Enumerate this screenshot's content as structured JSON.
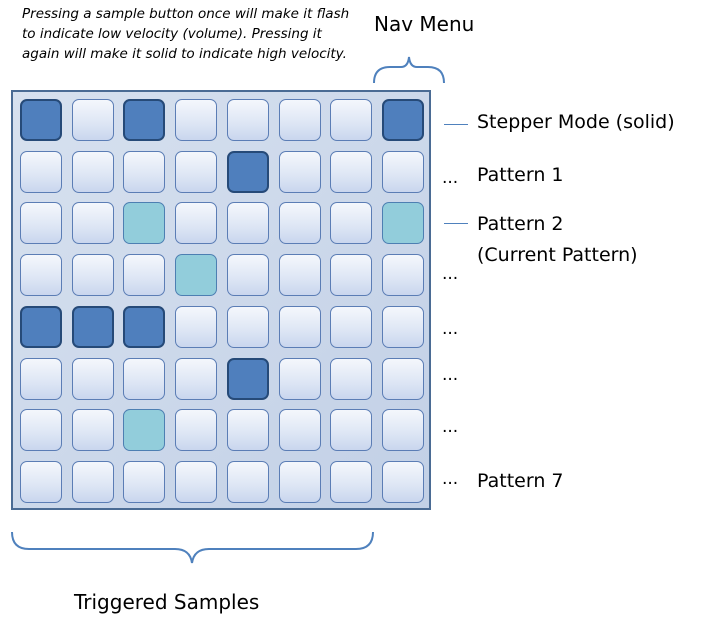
{
  "note": "Pressing a sample button once will make it flash to indicate low velocity (volume). Pressing it again will make it solid to indicate high velocity.",
  "nav_label": "Nav Menu",
  "bottom_label": "Triggered Samples",
  "row_labels": {
    "r0": "Stepper Mode (solid)",
    "r1": "Pattern 1",
    "r2a": "Pattern 2",
    "r2b": "(Current Pattern)",
    "r7": "Pattern 7"
  },
  "dots_text": "...",
  "grid": [
    [
      "solid",
      "off",
      "solid",
      "off",
      "off",
      "off",
      "off",
      "solid"
    ],
    [
      "off",
      "off",
      "off",
      "off",
      "solid",
      "off",
      "off",
      "off"
    ],
    [
      "off",
      "off",
      "flash",
      "off",
      "off",
      "off",
      "off",
      "flash"
    ],
    [
      "off",
      "off",
      "off",
      "flash",
      "off",
      "off",
      "off",
      "off"
    ],
    [
      "solid",
      "solid",
      "solid",
      "off",
      "off",
      "off",
      "off",
      "off"
    ],
    [
      "off",
      "off",
      "off",
      "off",
      "solid",
      "off",
      "off",
      "off"
    ],
    [
      "off",
      "off",
      "flash",
      "off",
      "off",
      "off",
      "off",
      "off"
    ],
    [
      "off",
      "off",
      "off",
      "off",
      "off",
      "off",
      "off",
      "off"
    ]
  ],
  "colors": {
    "solid": "#4f7fbd",
    "flash": "#92cddb",
    "off": "#dfe7f5",
    "brace": "#4f81bd"
  }
}
